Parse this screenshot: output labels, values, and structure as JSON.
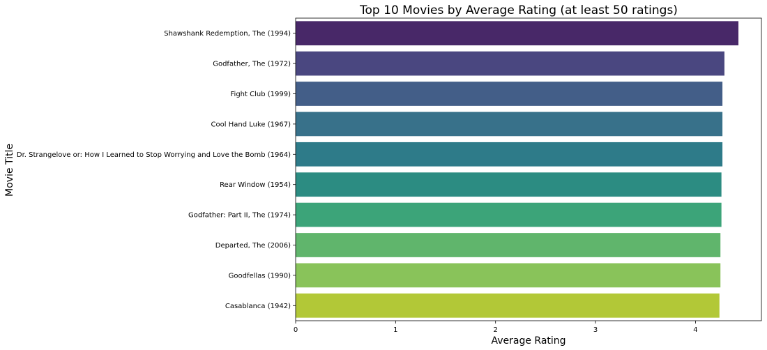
{
  "chart_data": {
    "type": "bar",
    "orientation": "horizontal",
    "title": "Top 10 Movies by Average Rating (at least 50 ratings)",
    "xlabel": "Average Rating",
    "ylabel": "Movie Title",
    "xlim": [
      0,
      4.66
    ],
    "xticks": [
      0,
      1,
      2,
      3,
      4
    ],
    "grid": false,
    "legend": "none",
    "categories": [
      "Shawshank Redemption, The (1994)",
      "Godfather, The (1972)",
      "Fight Club (1999)",
      "Cool Hand Luke (1967)",
      "Dr. Strangelove or: How I Learned to Stop Worrying and Love the Bomb (1964)",
      "Rear Window (1954)",
      "Godfather: Part II, The (1974)",
      "Departed, The (2006)",
      "Goodfellas (1990)",
      "Casablanca (1942)"
    ],
    "values": [
      4.43,
      4.29,
      4.27,
      4.27,
      4.27,
      4.26,
      4.26,
      4.25,
      4.25,
      4.24
    ],
    "colors": [
      "#482868",
      "#4a4780",
      "#435e88",
      "#38718a",
      "#2e7b89",
      "#2c8c82",
      "#3ca479",
      "#60b56c",
      "#89c35a",
      "#b2c837"
    ]
  }
}
